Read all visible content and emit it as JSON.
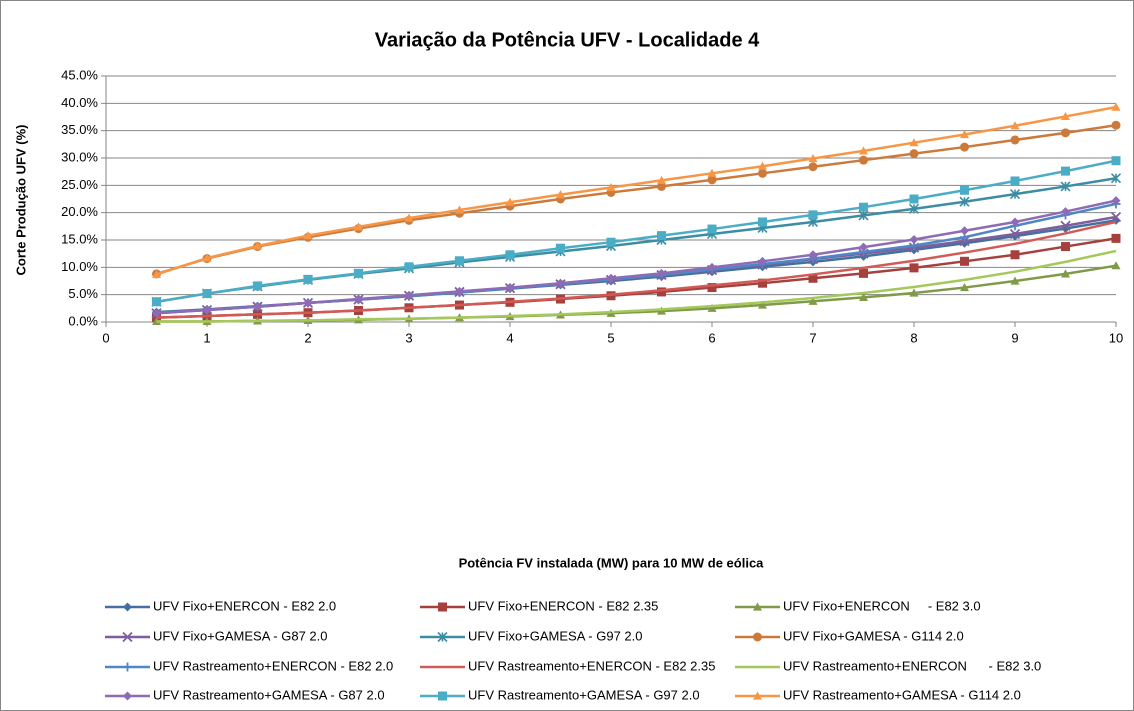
{
  "chart_data": {
    "type": "line",
    "title": "Variação da Potência UFV - Localidade 4",
    "x_label": "Potência FV instalada (MW) para 10 MW de eólica",
    "y_label": "Corte Produção UFV (%)",
    "x": [
      0.5,
      1,
      1.5,
      2,
      2.5,
      3,
      3.5,
      4,
      4.5,
      5,
      5.5,
      6,
      6.5,
      7,
      7.5,
      8,
      8.5,
      9,
      9.5,
      10
    ],
    "xlim": [
      0,
      10
    ],
    "xticks": [
      0,
      1,
      2,
      3,
      4,
      5,
      6,
      7,
      8,
      9,
      10
    ],
    "ylim": [
      0,
      45
    ],
    "yticks": [
      {
        "value": 0,
        "label": "0.0%"
      },
      {
        "value": 5,
        "label": "5.0%"
      },
      {
        "value": 10,
        "label": "10.0%"
      },
      {
        "value": 15,
        "label": "15.0%"
      },
      {
        "value": 20,
        "label": "20.0%"
      },
      {
        "value": 25,
        "label": "25.0%"
      },
      {
        "value": 30,
        "label": "30.0%"
      },
      {
        "value": 35,
        "label": "35.0%"
      },
      {
        "value": 40,
        "label": "40.0%"
      },
      {
        "value": 45,
        "label": "45.0%"
      }
    ],
    "grid": true,
    "legend": "bottom",
    "series": [
      {
        "name": "UFV Fixo+ENERCON - E82 2.0",
        "color": "#44709F",
        "marker": "diamond",
        "values": [
          1.8,
          2.3,
          2.9,
          3.5,
          4.1,
          4.7,
          5.4,
          6.1,
          6.8,
          7.5,
          8.3,
          9.2,
          10.1,
          11.0,
          12.0,
          13.2,
          14.4,
          15.7,
          17.1,
          18.6
        ]
      },
      {
        "name": "UFV Fixo+ENERCON - E82 2.35",
        "color": "#A5403D",
        "marker": "square",
        "values": [
          0.8,
          1.1,
          1.4,
          1.7,
          2.1,
          2.6,
          3.1,
          3.6,
          4.2,
          4.8,
          5.5,
          6.3,
          7.1,
          8.0,
          8.9,
          9.9,
          11.1,
          12.3,
          13.8,
          15.3
        ]
      },
      {
        "name": "UFV Fixo+ENERCON     - E82 3.0",
        "color": "#7F9A48",
        "marker": "triangle",
        "values": [
          0.1,
          0.1,
          0.2,
          0.3,
          0.4,
          0.6,
          0.8,
          1.0,
          1.3,
          1.6,
          2.0,
          2.5,
          3.1,
          3.8,
          4.5,
          5.3,
          6.3,
          7.5,
          8.8,
          10.3
        ]
      },
      {
        "name": "UFV Fixo+GAMESA - G87 2.0",
        "color": "#7E5F9B",
        "marker": "x",
        "values": [
          1.6,
          2.2,
          2.8,
          3.5,
          4.1,
          4.8,
          5.5,
          6.2,
          6.9,
          7.7,
          8.6,
          9.5,
          10.5,
          11.5,
          12.5,
          13.6,
          14.8,
          16.1,
          17.6,
          19.2
        ]
      },
      {
        "name": "UFV Fixo+GAMESA - G97 2.0",
        "color": "#3C8DA3",
        "marker": "star",
        "values": [
          3.7,
          5.2,
          6.5,
          7.7,
          8.8,
          9.8,
          10.9,
          11.9,
          12.9,
          13.9,
          15.0,
          16.1,
          17.2,
          18.3,
          19.5,
          20.7,
          22.0,
          23.4,
          24.8,
          26.3
        ]
      },
      {
        "name": "UFV Fixo+GAMESA - G114 2.0",
        "color": "#CC7A3C",
        "marker": "circle",
        "values": [
          8.8,
          11.6,
          13.8,
          15.5,
          17.1,
          18.6,
          19.9,
          21.2,
          22.5,
          23.7,
          24.8,
          26.0,
          27.2,
          28.4,
          29.6,
          30.8,
          32.0,
          33.3,
          34.6,
          36.0
        ]
      },
      {
        "name": "UFV Rastreamento+ENERCON - E82 2.0",
        "color": "#4F86C6",
        "marker": "plus",
        "values": [
          1.7,
          2.2,
          2.8,
          3.5,
          4.1,
          4.7,
          5.4,
          6.2,
          6.9,
          7.8,
          8.6,
          9.6,
          10.6,
          11.6,
          12.8,
          14.0,
          15.5,
          17.6,
          19.6,
          21.6
        ]
      },
      {
        "name": "UFV Rastreamento+ENERCON - E82 2.35",
        "color": "#D25A56",
        "marker": "none",
        "values": [
          0.8,
          1.1,
          1.4,
          1.7,
          2.1,
          2.6,
          3.1,
          3.7,
          4.3,
          5.0,
          5.8,
          6.7,
          7.6,
          8.7,
          9.9,
          11.2,
          12.7,
          14.3,
          16.2,
          18.3
        ]
      },
      {
        "name": "UFV Rastreamento+ENERCON      - E82 3.0",
        "color": "#A5C85A",
        "marker": "none",
        "values": [
          0.1,
          0.1,
          0.2,
          0.3,
          0.5,
          0.6,
          0.8,
          1.1,
          1.4,
          1.8,
          2.3,
          2.9,
          3.6,
          4.4,
          5.3,
          6.4,
          7.7,
          9.2,
          11.0,
          13.0
        ]
      },
      {
        "name": "UFV Rastreamento+GAMESA - G87 2.0",
        "color": "#8E6BB5",
        "marker": "diamond",
        "values": [
          1.6,
          2.2,
          2.8,
          3.5,
          4.2,
          4.9,
          5.6,
          6.3,
          7.1,
          8.0,
          8.9,
          10.0,
          11.1,
          12.3,
          13.7,
          15.1,
          16.7,
          18.3,
          20.2,
          22.2
        ]
      },
      {
        "name": "UFV Rastreamento+GAMESA - G97 2.0",
        "color": "#4BACC6",
        "marker": "square",
        "values": [
          3.7,
          5.2,
          6.6,
          7.8,
          8.9,
          10.1,
          11.2,
          12.3,
          13.5,
          14.6,
          15.8,
          17.0,
          18.3,
          19.6,
          21.0,
          22.5,
          24.1,
          25.8,
          27.6,
          29.5
        ]
      },
      {
        "name": "UFV Rastreamento+GAMESA - G114 2.0",
        "color": "#F79646",
        "marker": "triangle",
        "values": [
          8.7,
          11.7,
          13.9,
          15.8,
          17.4,
          19.0,
          20.5,
          21.9,
          23.3,
          24.6,
          25.9,
          27.2,
          28.5,
          29.9,
          31.3,
          32.8,
          34.3,
          35.9,
          37.6,
          39.3
        ]
      }
    ]
  }
}
